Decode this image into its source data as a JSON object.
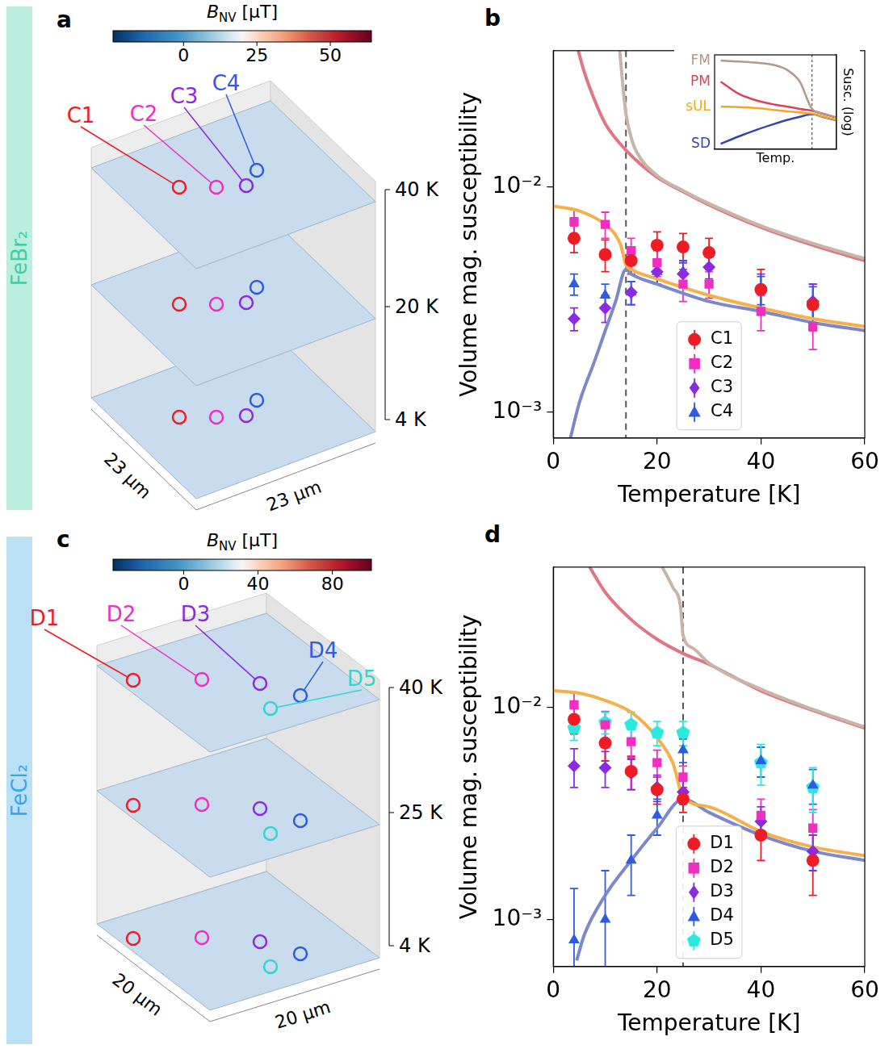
{
  "side_labels": [
    {
      "text": "FeBr₂",
      "color": "#3fcfa6"
    },
    {
      "text": "FeCl₂",
      "color": "#38a6e6"
    }
  ],
  "maps": [
    {
      "panel_label": "a",
      "colorbar": {
        "symbol": "B",
        "subscript": "NV",
        "unit": "[μT]",
        "range": [
          -24,
          64
        ],
        "ticks": [
          0,
          25,
          50
        ]
      },
      "layers": [
        "40 K",
        "20 K",
        "4 K"
      ],
      "dimensions": [
        "23 μm",
        "23 μm"
      ],
      "regions": [
        {
          "label": "C1",
          "color": "#ee1c25"
        },
        {
          "label": "C2",
          "color": "#f02fc2"
        },
        {
          "label": "C3",
          "color": "#8a2be2"
        },
        {
          "label": "C4",
          "color": "#2d5be3"
        }
      ]
    },
    {
      "panel_label": "c",
      "colorbar": {
        "symbol": "B",
        "subscript": "NV",
        "unit": "[μT]",
        "range": [
          -38,
          101
        ],
        "ticks": [
          0,
          40,
          80
        ]
      },
      "layers": [
        "40 K",
        "25 K",
        "4 K"
      ],
      "dimensions": [
        "20 μm",
        "20 μm"
      ],
      "regions": [
        {
          "label": "D1",
          "color": "#ee1c25"
        },
        {
          "label": "D2",
          "color": "#f02fc2"
        },
        {
          "label": "D3",
          "color": "#8a2be2"
        },
        {
          "label": "D4",
          "color": "#2d5be3"
        },
        {
          "label": "D5",
          "color": "#2ed8d0"
        }
      ]
    }
  ],
  "chart_data": [
    {
      "panel_label": "b",
      "type": "scatter",
      "xlabel": "Temperature [K]",
      "ylabel": "Volume mag. susceptibility",
      "xlim": [
        0,
        60
      ],
      "xticks": [
        0,
        20,
        40,
        60
      ],
      "ylim": [
        0.00077,
        0.04
      ],
      "yticks": [
        {
          "value": 0.001,
          "label": "10⁻³"
        },
        {
          "value": 0.01,
          "label": "10⁻²"
        }
      ],
      "log": "y",
      "grid": false,
      "legend": "lower center",
      "reference_x": 14,
      "series": [
        {
          "type": "line",
          "color": "#c9b4a8",
          "x": [
            12.8,
            13.4,
            14,
            15,
            16,
            20,
            25,
            30,
            40,
            50,
            60
          ],
          "values": [
            0.04,
            0.028,
            0.021,
            0.0165,
            0.0143,
            0.0112,
            0.0096,
            0.0084,
            0.0067,
            0.0056,
            0.0048
          ]
        },
        {
          "type": "line",
          "color": "#e07585",
          "x": [
            4.8,
            6,
            8,
            10,
            14,
            20,
            25,
            30,
            40,
            50,
            60
          ],
          "values": [
            0.04,
            0.032,
            0.024,
            0.019,
            0.0145,
            0.011,
            0.0095,
            0.0083,
            0.0066,
            0.0055,
            0.0047
          ]
        },
        {
          "type": "line",
          "color": "#f5b04a",
          "x": [
            0,
            5,
            10,
            12,
            13,
            14,
            15,
            20,
            30,
            40,
            50,
            60
          ],
          "values": [
            0.0082,
            0.0078,
            0.0068,
            0.0061,
            0.0055,
            0.0045,
            0.0043,
            0.0039,
            0.0033,
            0.0029,
            0.0026,
            0.0024
          ]
        },
        {
          "type": "line",
          "color": "#7d88cc",
          "x": [
            3.3,
            5,
            8,
            10,
            12,
            14,
            15,
            20,
            30,
            40,
            50,
            60
          ],
          "values": [
            0.00077,
            0.0011,
            0.0017,
            0.0023,
            0.0031,
            0.0043,
            0.0041,
            0.0037,
            0.0031,
            0.0028,
            0.0025,
            0.0023
          ]
        },
        {
          "name": "C1",
          "color": "#ee1c25",
          "marker": "circle",
          "x": [
            4,
            10,
            15,
            20,
            25,
            30,
            40,
            50
          ],
          "values": [
            0.0059,
            0.005,
            0.0047,
            0.0055,
            0.0054,
            0.0051,
            0.0035,
            0.003
          ],
          "errors": [
            0.0008,
            0.0008,
            0.0006,
            0.0008,
            0.0008,
            0.0008,
            0.0008,
            0.0007
          ]
        },
        {
          "name": "C2",
          "color": "#f02fc2",
          "marker": "square",
          "x": [
            4,
            10,
            15,
            20,
            25,
            30,
            40,
            50
          ],
          "values": [
            0.007,
            0.0068,
            0.0052,
            0.0046,
            0.0037,
            0.0037,
            0.0028,
            0.0024
          ],
          "errors": [
            0.0009,
            0.0009,
            0.0007,
            0.0006,
            0.0006,
            0.0005,
            0.0005,
            0.0005
          ]
        },
        {
          "name": "C3",
          "color": "#8a2be2",
          "marker": "diamond",
          "x": [
            4,
            10,
            15,
            20,
            25,
            30,
            40,
            50
          ],
          "values": [
            0.0026,
            0.0029,
            0.0034,
            0.0042,
            0.0041,
            0.0044,
            0.0035,
            0.0031
          ],
          "errors": [
            0.0003,
            0.0004,
            0.0004,
            0.0005,
            0.0005,
            0.0005,
            0.0006,
            0.0006
          ]
        },
        {
          "name": "C4",
          "color": "#2d5be3",
          "marker": "triangle",
          "x": [
            4,
            10,
            15,
            20,
            25,
            40,
            50
          ],
          "values": [
            0.0037,
            0.0033,
            0.0034,
            0.0042,
            0.0042,
            0.0035,
            0.003
          ],
          "errors": [
            0.0004,
            0.0004,
            0.0004,
            0.0005,
            0.0005,
            0.0005,
            0.0006
          ]
        }
      ],
      "inset": {
        "type": "line",
        "xlabel": "Temp.",
        "ylabel": "Susc. (log)",
        "log": "y",
        "tick_labels": false,
        "xlim": [
          0,
          1
        ],
        "ylim": [
          0.9,
          150
        ],
        "reference_x": 0.8,
        "series": [
          {
            "name": "FM",
            "color": "#b39a88",
            "x": [
              0.05,
              0.2,
              0.35,
              0.5,
              0.6,
              0.7,
              0.8,
              0.9,
              1.0
            ],
            "values": [
              110,
              105,
              98,
              85,
              65,
              35,
              8,
              6.1,
              5
            ]
          },
          {
            "name": "PM",
            "color": "#e0405a",
            "x": [
              0.05,
              0.2,
              0.35,
              0.5,
              0.6,
              0.7,
              0.8,
              0.9,
              1.0
            ],
            "values": [
              35,
              18,
              12.5,
              10,
              9,
              8,
              7.2,
              6,
              5
            ]
          },
          {
            "name": "sUL",
            "color": "#f5a623",
            "x": [
              0.05,
              0.2,
              0.35,
              0.5,
              0.6,
              0.7,
              0.8,
              0.9,
              1.0
            ],
            "values": [
              9,
              8.8,
              8.3,
              7.5,
              7,
              6.6,
              6.2,
              5.2,
              4.4
            ]
          },
          {
            "name": "SD",
            "color": "#3443b0",
            "x": [
              0.05,
              0.2,
              0.35,
              0.5,
              0.6,
              0.7,
              0.8,
              0.9,
              1.0
            ],
            "values": [
              1.2,
              1.8,
              2.6,
              3.6,
              4.4,
              5.2,
              6,
              5.1,
              4.3
            ]
          }
        ]
      }
    },
    {
      "panel_label": "d",
      "type": "scatter",
      "xlabel": "Temperature [K]",
      "ylabel": "Volume mag. susceptibility",
      "xlim": [
        0,
        60
      ],
      "xticks": [
        0,
        20,
        40,
        60
      ],
      "ylim": [
        0.00064,
        0.046
      ],
      "yticks": [
        {
          "value": 0.001,
          "label": "10⁻³"
        },
        {
          "value": 0.01,
          "label": "10⁻²"
        }
      ],
      "log": "y",
      "grid": false,
      "legend": "lower center",
      "reference_x": 25,
      "series": [
        {
          "type": "line",
          "color": "#c9b4a8",
          "x": [
            21,
            23,
            24.5,
            25,
            27,
            30,
            40,
            50,
            60
          ],
          "values": [
            0.046,
            0.037,
            0.03,
            0.022,
            0.019,
            0.0162,
            0.0122,
            0.0098,
            0.0081
          ]
        },
        {
          "type": "line",
          "color": "#e07585",
          "x": [
            7,
            10,
            15,
            20,
            25,
            30,
            40,
            50,
            60
          ],
          "values": [
            0.046,
            0.035,
            0.026,
            0.021,
            0.018,
            0.016,
            0.012,
            0.0097,
            0.008
          ]
        },
        {
          "type": "line",
          "color": "#f5b04a",
          "x": [
            0,
            5,
            10,
            15,
            20,
            23,
            25,
            30,
            40,
            50,
            60
          ],
          "values": [
            0.012,
            0.0117,
            0.0108,
            0.0095,
            0.0072,
            0.0055,
            0.0038,
            0.0034,
            0.0026,
            0.0022,
            0.002
          ]
        },
        {
          "type": "line",
          "color": "#7d88cc",
          "x": [
            4.5,
            6,
            10,
            15,
            20,
            25,
            30,
            40,
            50,
            60
          ],
          "values": [
            0.00064,
            0.00085,
            0.0013,
            0.0019,
            0.0027,
            0.0037,
            0.0032,
            0.0025,
            0.0021,
            0.0019
          ]
        },
        {
          "name": "D1",
          "color": "#ee1c25",
          "marker": "circle",
          "x": [
            4,
            10,
            15,
            20,
            25,
            40,
            50
          ],
          "values": [
            0.0088,
            0.0068,
            0.005,
            0.0041,
            0.0037,
            0.0025,
            0.0019
          ],
          "errors": [
            0.0013,
            0.0012,
            0.0009,
            0.0006,
            0.0005,
            0.0006,
            0.0006
          ]
        },
        {
          "name": "D2",
          "color": "#f02fc2",
          "marker": "square",
          "x": [
            4,
            10,
            15,
            20,
            25,
            40,
            50
          ],
          "values": [
            0.0103,
            0.0083,
            0.0069,
            0.0055,
            0.0047,
            0.0031,
            0.0027
          ],
          "errors": [
            0.0014,
            0.0013,
            0.0011,
            0.0008,
            0.0006,
            0.0006,
            0.0006
          ]
        },
        {
          "name": "D3",
          "color": "#8a2be2",
          "marker": "diamond",
          "x": [
            4,
            10,
            15,
            20,
            25,
            40,
            50
          ],
          "values": [
            0.0053,
            0.0052,
            0.0049,
            0.0042,
            0.004,
            0.0029,
            0.0021
          ],
          "errors": [
            0.0011,
            0.001,
            0.0008,
            0.0006,
            0.0005,
            0.0005,
            0.0004
          ]
        },
        {
          "name": "D4",
          "color": "#2d5be3",
          "marker": "triangle",
          "x": [
            4,
            10,
            15,
            20,
            25,
            40,
            50
          ],
          "values": [
            0.0008,
            0.001,
            0.0019,
            0.0031,
            0.0063,
            0.0056,
            0.0043
          ],
          "errors": [
            0.0006,
            0.0007,
            0.0006,
            0.0006,
            0.0008,
            0.0009,
            0.0008
          ]
        },
        {
          "name": "D5",
          "color": "#2ee8e0",
          "marker": "pentagon",
          "x": [
            4,
            10,
            15,
            20,
            25,
            40,
            50
          ],
          "values": [
            0.008,
            0.0085,
            0.0083,
            0.0076,
            0.0076,
            0.0055,
            0.0042
          ],
          "errors": [
            0.001,
            0.001,
            0.0012,
            0.001,
            0.001,
            0.0012,
            0.001
          ]
        }
      ]
    }
  ]
}
